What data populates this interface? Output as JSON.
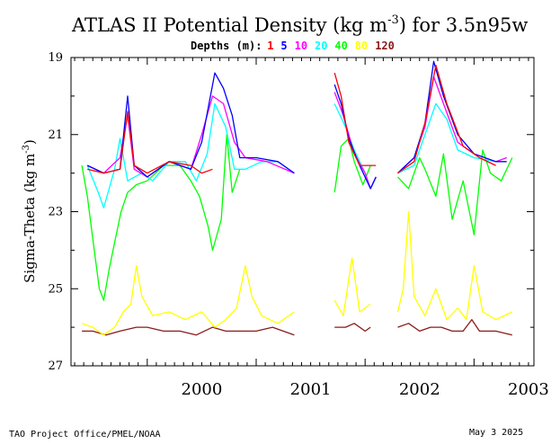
{
  "chart_data": {
    "type": "line",
    "title": "ATLAS II Potential Density (kg m",
    "title_exp": "-3",
    "title_suffix": ") for 3.5n95w",
    "legend_prefix": "Depths (m):",
    "ylabel": "Sigma-Theta (kg m",
    "ylabel_exp": "-3",
    "ylabel_suffix": ")",
    "ylim": [
      27,
      19
    ],
    "y_ticks": [
      "19",
      "21",
      "23",
      "25",
      "27"
    ],
    "xlim": [
      1999.3,
      2003.55
    ],
    "x_ticks": [
      {
        "label": "2000",
        "value": 2000.5
      },
      {
        "label": "2001",
        "value": 2001.5
      },
      {
        "label": "2002",
        "value": 2002.5
      },
      {
        "label": "2003",
        "value": 2003.5
      }
    ],
    "grid": false,
    "legend_placement": "top-center",
    "series": [
      {
        "name": "1",
        "color": "#ff0000",
        "segments": [
          [
            [
              1999.45,
              21.9
            ],
            [
              1999.6,
              22.0
            ],
            [
              1999.75,
              21.9
            ],
            [
              1999.82,
              20.4
            ],
            [
              1999.88,
              21.8
            ],
            [
              2000.0,
              22.0
            ],
            [
              2000.2,
              21.7
            ],
            [
              2000.4,
              21.8
            ],
            [
              2000.5,
              22.0
            ],
            [
              2000.6,
              21.9
            ]
          ],
          [
            [
              2001.72,
              19.4
            ],
            [
              2001.78,
              20.0
            ],
            [
              2001.85,
              21.2
            ],
            [
              2001.95,
              21.8
            ],
            [
              2002.1,
              21.8
            ]
          ],
          [
            [
              2002.3,
              22.0
            ],
            [
              2002.45,
              21.7
            ],
            [
              2002.55,
              20.7
            ],
            [
              2002.65,
              19.2
            ],
            [
              2002.75,
              20.2
            ],
            [
              2002.9,
              21.3
            ],
            [
              2003.05,
              21.6
            ],
            [
              2003.2,
              21.8
            ]
          ]
        ]
      },
      {
        "name": "5",
        "color": "#0000ff",
        "segments": [
          [
            [
              1999.45,
              21.8
            ],
            [
              1999.6,
              22.0
            ],
            [
              1999.75,
              21.9
            ],
            [
              1999.82,
              20.0
            ],
            [
              1999.88,
              21.8
            ],
            [
              2000.0,
              22.1
            ],
            [
              2000.2,
              21.7
            ],
            [
              2000.4,
              21.9
            ],
            [
              2000.5,
              21.2
            ],
            [
              2000.62,
              19.4
            ],
            [
              2000.7,
              19.8
            ],
            [
              2000.78,
              20.5
            ],
            [
              2000.85,
              21.6
            ],
            [
              2001.0,
              21.6
            ],
            [
              2001.2,
              21.7
            ],
            [
              2001.35,
              22.0
            ]
          ],
          [
            [
              1999.7,
              22.0
            ]
          ],
          [
            [
              2001.72,
              19.7
            ],
            [
              2001.78,
              20.2
            ],
            [
              2001.85,
              21.1
            ],
            [
              2001.95,
              21.8
            ],
            [
              2002.05,
              22.4
            ],
            [
              2002.1,
              22.1
            ]
          ],
          [
            [
              2002.3,
              22.0
            ],
            [
              2002.45,
              21.6
            ],
            [
              2002.55,
              20.7
            ],
            [
              2002.63,
              19.1
            ],
            [
              2002.72,
              20.0
            ],
            [
              2002.85,
              21.0
            ],
            [
              2003.0,
              21.5
            ],
            [
              2003.2,
              21.7
            ],
            [
              2003.3,
              21.7
            ]
          ]
        ]
      },
      {
        "name": "10",
        "color": "#ff00ff",
        "segments": [
          [
            [
              1999.45,
              21.8
            ],
            [
              1999.6,
              22.0
            ],
            [
              1999.75,
              21.6
            ],
            [
              1999.82,
              20.5
            ],
            [
              1999.88,
              21.9
            ],
            [
              2000.0,
              22.1
            ],
            [
              2000.2,
              21.7
            ],
            [
              2000.4,
              21.9
            ],
            [
              2000.5,
              21.0
            ],
            [
              2000.6,
              20.0
            ],
            [
              2000.7,
              20.2
            ],
            [
              2000.8,
              21.2
            ],
            [
              2000.9,
              21.6
            ],
            [
              2001.1,
              21.7
            ],
            [
              2001.35,
              22.0
            ]
          ],
          [
            [
              1999.7,
              22.0
            ]
          ],
          [
            [
              2001.72,
              19.9
            ],
            [
              2001.8,
              20.5
            ],
            [
              2001.9,
              21.5
            ],
            [
              2002.0,
              22.0
            ],
            [
              2002.05,
              22.4
            ],
            [
              2002.1,
              22.1
            ]
          ],
          [
            [
              2002.3,
              22.0
            ],
            [
              2002.45,
              21.6
            ],
            [
              2002.55,
              20.8
            ],
            [
              2002.63,
              19.5
            ],
            [
              2002.72,
              20.2
            ],
            [
              2002.85,
              21.2
            ],
            [
              2003.0,
              21.5
            ],
            [
              2003.2,
              21.7
            ],
            [
              2003.3,
              21.6
            ]
          ]
        ]
      },
      {
        "name": "20",
        "color": "#00ffff",
        "segments": [
          [
            [
              1999.45,
              21.8
            ],
            [
              1999.55,
              22.5
            ],
            [
              1999.6,
              22.9
            ],
            [
              1999.7,
              21.9
            ],
            [
              1999.75,
              21.1
            ],
            [
              1999.82,
              22.2
            ],
            [
              1999.95,
              22.0
            ],
            [
              2000.05,
              22.2
            ],
            [
              2000.2,
              21.7
            ],
            [
              2000.35,
              21.7
            ],
            [
              2000.45,
              22.2
            ],
            [
              2000.55,
              21.5
            ],
            [
              2000.62,
              20.2
            ],
            [
              2000.72,
              20.8
            ],
            [
              2000.8,
              21.9
            ],
            [
              2000.9,
              21.9
            ],
            [
              2001.05,
              21.7
            ],
            [
              2001.2,
              21.7
            ],
            [
              2001.35,
              22.0
            ]
          ],
          [
            [
              2001.72,
              20.2
            ],
            [
              2001.82,
              20.8
            ],
            [
              2001.9,
              21.4
            ],
            [
              2002.0,
              22.0
            ],
            [
              2002.05,
              22.4
            ],
            [
              2002.1,
              22.1
            ]
          ],
          [
            [
              2002.3,
              22.0
            ],
            [
              2002.45,
              21.8
            ],
            [
              2002.55,
              21.0
            ],
            [
              2002.65,
              20.2
            ],
            [
              2002.75,
              20.6
            ],
            [
              2002.85,
              21.4
            ],
            [
              2003.0,
              21.6
            ],
            [
              2003.2,
              21.7
            ],
            [
              2003.3,
              21.6
            ]
          ]
        ]
      },
      {
        "name": "40",
        "color": "#00ff00",
        "segments": [
          [
            [
              1999.4,
              21.8
            ],
            [
              1999.45,
              22.6
            ],
            [
              1999.5,
              23.7
            ],
            [
              1999.56,
              25.0
            ],
            [
              1999.6,
              25.3
            ],
            [
              1999.65,
              24.5
            ],
            [
              1999.7,
              23.8
            ],
            [
              1999.76,
              23.0
            ],
            [
              1999.82,
              22.5
            ],
            [
              1999.9,
              22.3
            ],
            [
              2000.0,
              22.2
            ],
            [
              2000.15,
              21.8
            ],
            [
              2000.3,
              21.8
            ],
            [
              2000.4,
              22.2
            ],
            [
              2000.48,
              22.6
            ],
            [
              2000.56,
              23.4
            ],
            [
              2000.6,
              24.0
            ],
            [
              2000.68,
              23.2
            ],
            [
              2000.73,
              21.0
            ],
            [
              2000.78,
              22.5
            ],
            [
              2000.85,
              21.9
            ]
          ],
          [
            [
              2001.72,
              22.5
            ],
            [
              2001.78,
              21.3
            ],
            [
              2001.85,
              21.1
            ],
            [
              2001.9,
              21.7
            ],
            [
              2001.98,
              22.3
            ],
            [
              2002.05,
              21.8
            ]
          ],
          [
            [
              2002.3,
              22.1
            ],
            [
              2002.4,
              22.4
            ],
            [
              2002.5,
              21.6
            ],
            [
              2002.55,
              21.9
            ],
            [
              2002.65,
              22.6
            ],
            [
              2002.72,
              21.5
            ],
            [
              2002.8,
              23.2
            ],
            [
              2002.9,
              22.2
            ],
            [
              2003.0,
              23.6
            ],
            [
              2003.08,
              21.4
            ],
            [
              2003.15,
              22.0
            ],
            [
              2003.25,
              22.2
            ],
            [
              2003.35,
              21.6
            ]
          ]
        ]
      },
      {
        "name": "80",
        "color": "#ffff00",
        "segments": [
          [
            [
              1999.4,
              25.9
            ],
            [
              1999.5,
              26.0
            ],
            [
              1999.6,
              26.2
            ],
            [
              1999.7,
              26.0
            ],
            [
              1999.78,
              25.6
            ],
            [
              1999.85,
              25.4
            ],
            [
              1999.9,
              24.4
            ],
            [
              1999.95,
              25.2
            ],
            [
              2000.05,
              25.7
            ],
            [
              2000.2,
              25.6
            ],
            [
              2000.35,
              25.8
            ],
            [
              2000.5,
              25.6
            ],
            [
              2000.62,
              26.0
            ],
            [
              2000.72,
              25.8
            ],
            [
              2000.82,
              25.5
            ],
            [
              2000.9,
              24.4
            ],
            [
              2000.96,
              25.2
            ],
            [
              2001.05,
              25.7
            ],
            [
              2001.2,
              25.9
            ],
            [
              2001.35,
              25.6
            ]
          ],
          [
            [
              2001.72,
              25.3
            ],
            [
              2001.8,
              25.7
            ],
            [
              2001.88,
              24.2
            ],
            [
              2001.95,
              25.6
            ],
            [
              2002.05,
              25.4
            ]
          ],
          [
            [
              2002.3,
              25.6
            ],
            [
              2002.35,
              25.0
            ],
            [
              2002.4,
              23.0
            ],
            [
              2002.45,
              25.2
            ],
            [
              2002.55,
              25.7
            ],
            [
              2002.65,
              25.0
            ],
            [
              2002.75,
              25.8
            ],
            [
              2002.85,
              25.5
            ],
            [
              2002.93,
              25.8
            ],
            [
              2003.0,
              24.4
            ],
            [
              2003.08,
              25.6
            ],
            [
              2003.2,
              25.8
            ],
            [
              2003.35,
              25.6
            ]
          ]
        ]
      },
      {
        "name": "120",
        "color": "#8b1a1a",
        "segments": [
          [
            [
              1999.4,
              26.1
            ],
            [
              1999.5,
              26.1
            ],
            [
              1999.62,
              26.2
            ],
            [
              1999.75,
              26.1
            ],
            [
              1999.9,
              26.0
            ],
            [
              2000.0,
              26.0
            ],
            [
              2000.15,
              26.1
            ],
            [
              2000.3,
              26.1
            ],
            [
              2000.45,
              26.2
            ],
            [
              2000.6,
              26.0
            ],
            [
              2000.72,
              26.1
            ],
            [
              2000.85,
              26.1
            ],
            [
              2001.0,
              26.1
            ],
            [
              2001.15,
              26.0
            ],
            [
              2001.35,
              26.2
            ]
          ],
          [
            [
              2001.72,
              26.0
            ],
            [
              2001.82,
              26.0
            ],
            [
              2001.9,
              25.9
            ],
            [
              2002.0,
              26.1
            ],
            [
              2002.05,
              26.0
            ]
          ],
          [
            [
              2002.3,
              26.0
            ],
            [
              2002.4,
              25.9
            ],
            [
              2002.5,
              26.1
            ],
            [
              2002.6,
              26.0
            ],
            [
              2002.7,
              26.0
            ],
            [
              2002.8,
              26.1
            ],
            [
              2002.9,
              26.1
            ],
            [
              2002.98,
              25.8
            ],
            [
              2003.05,
              26.1
            ],
            [
              2003.2,
              26.1
            ],
            [
              2003.35,
              26.2
            ]
          ]
        ]
      }
    ]
  },
  "footer": {
    "left": "TAO Project Office/PMEL/NOAA",
    "right": "May  3 2025"
  }
}
